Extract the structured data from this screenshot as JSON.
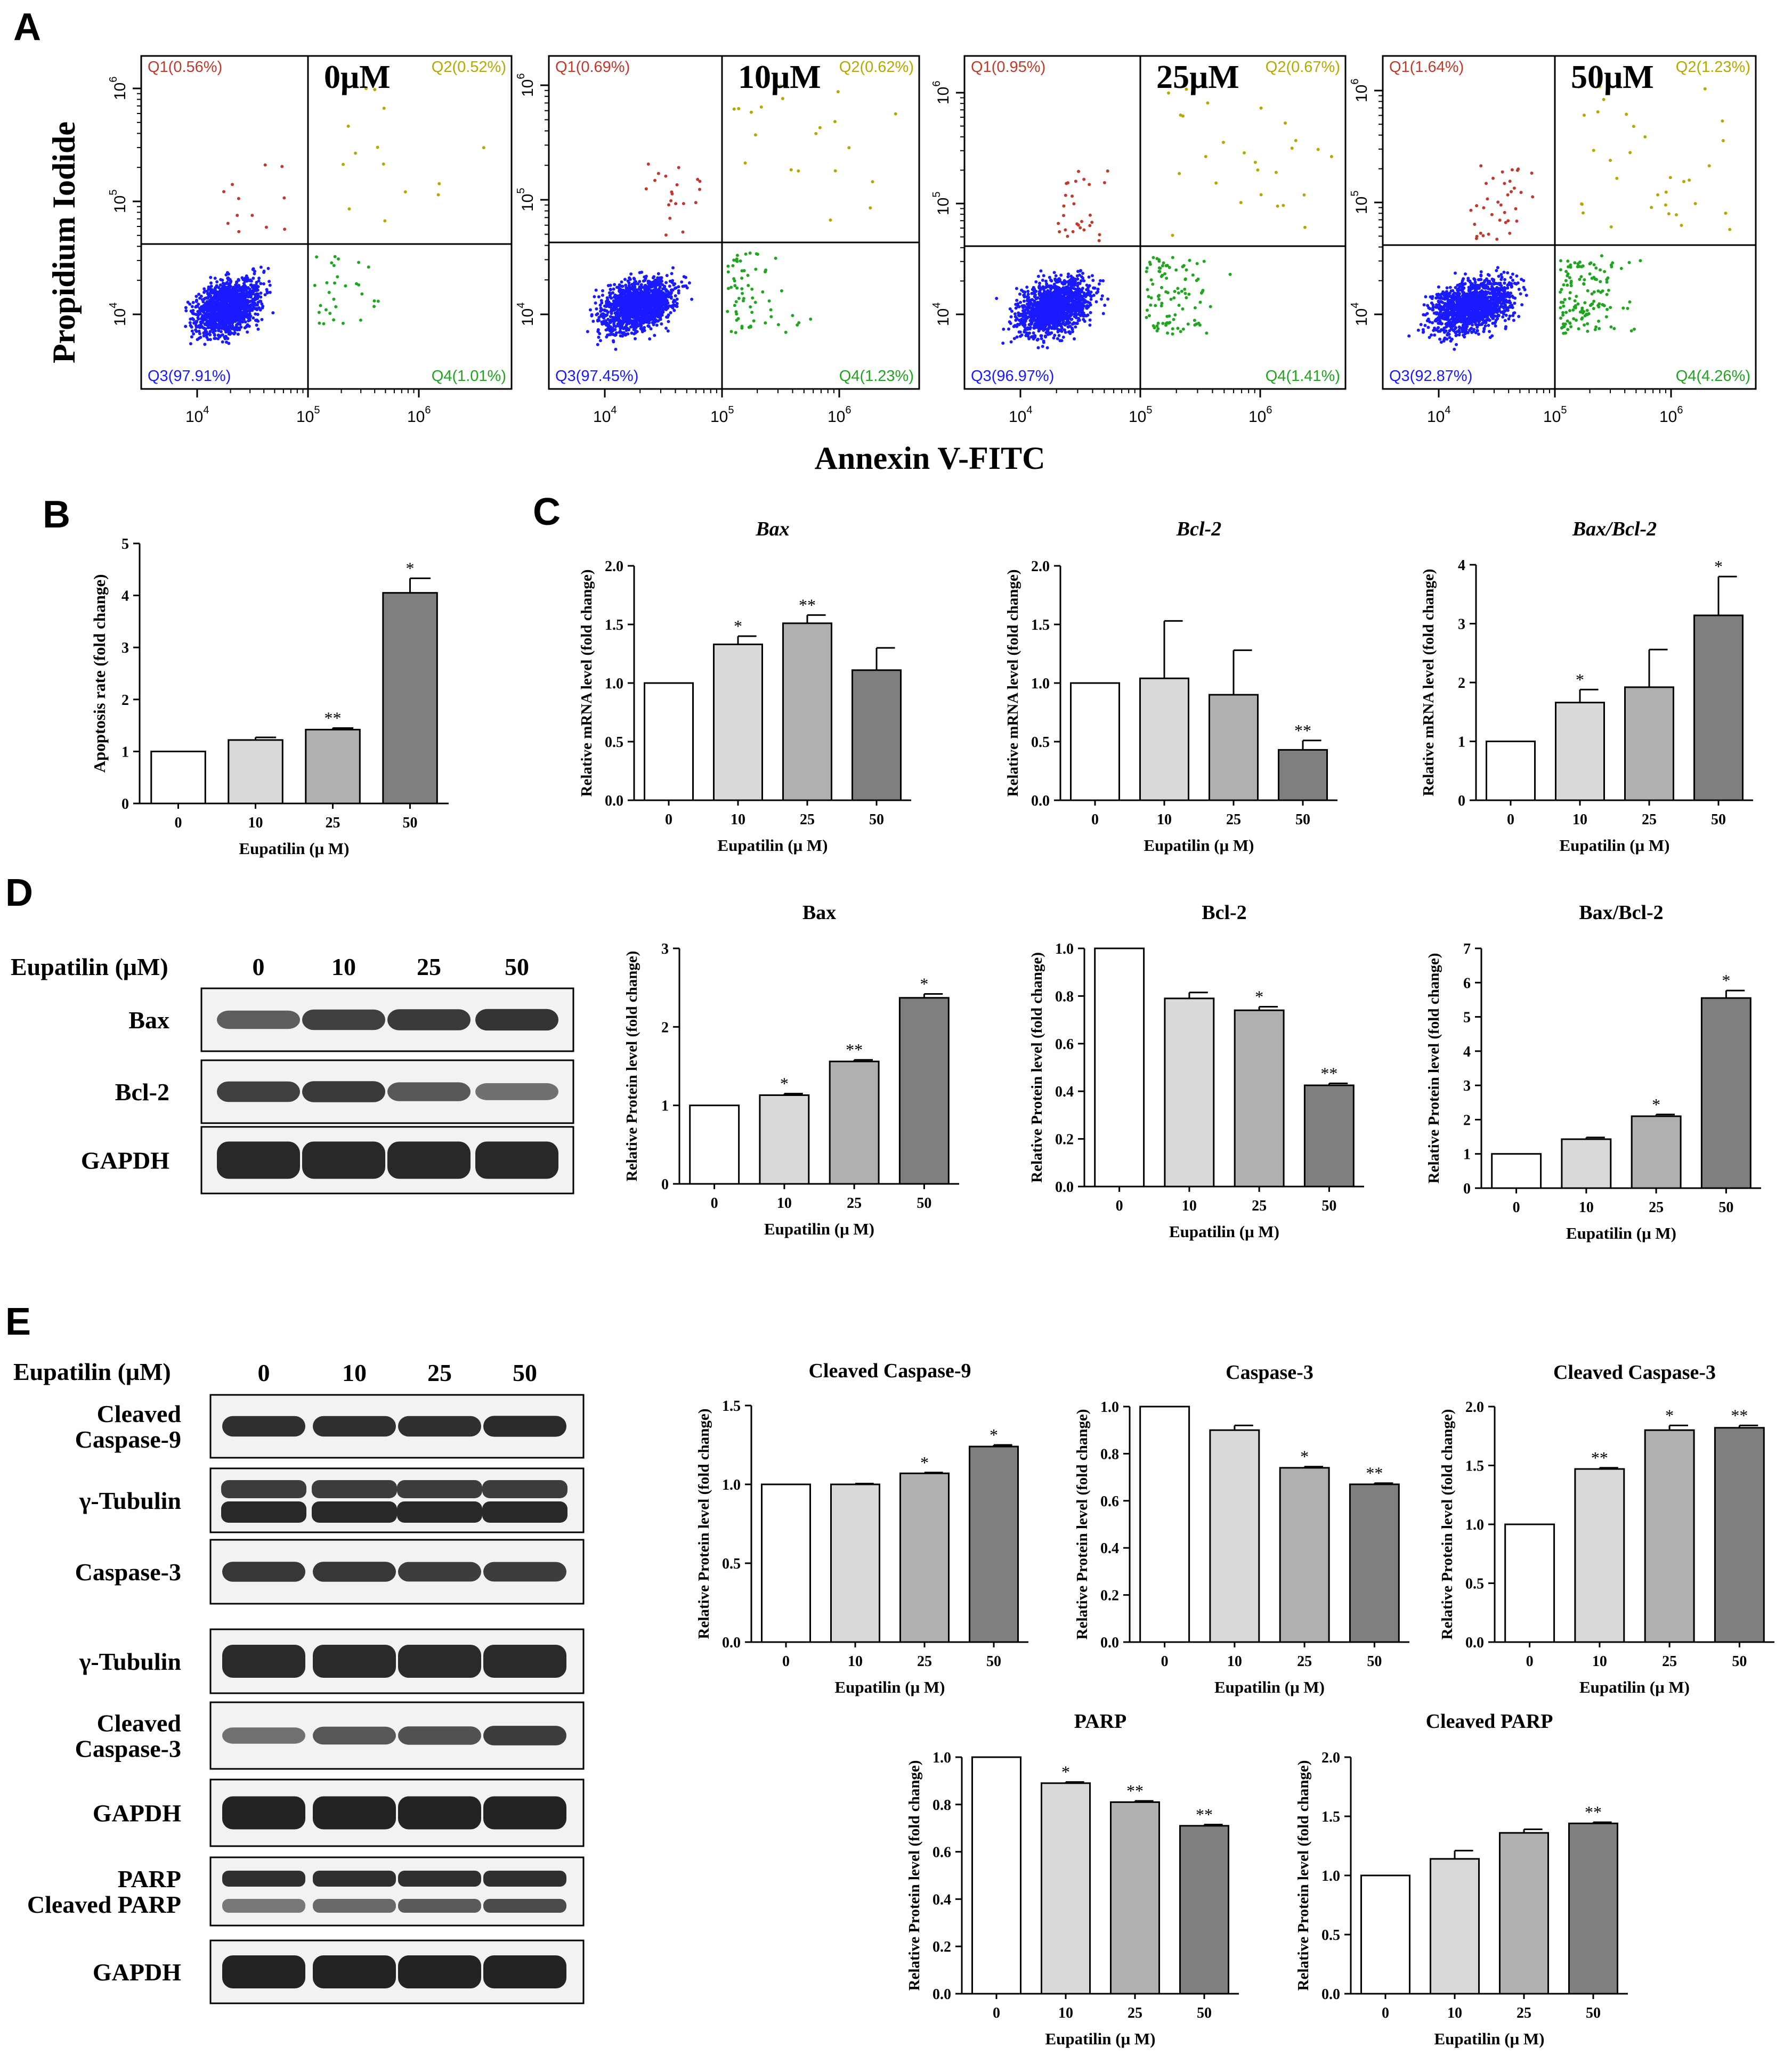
{
  "panel_labels": {
    "A": "A",
    "B": "B",
    "C": "C",
    "D": "D",
    "E": "E"
  },
  "colors": {
    "q1": "#c0392b",
    "q2": "#b5a800",
    "q3": "#1a1aff",
    "q4": "#1fa51f",
    "bar0": "#ffffff",
    "bar10": "#d9d9d9",
    "bar25": "#b0b0b0",
    "bar50": "#7f7f7f"
  },
  "flow": {
    "ylabel": "Propidium Iodide",
    "xlabel": "Annexin V-FITC",
    "tick_labels": {
      "t4": "10",
      "t5": "10",
      "t6": "10",
      "e4": "4",
      "e5": "5",
      "e6": "6"
    },
    "plots": [
      {
        "dose": "0μM",
        "q1": "Q1(0.56%)",
        "q2": "Q2(0.52%)",
        "q3": "Q3(97.91%)",
        "q4": "Q4(1.01%)"
      },
      {
        "dose": "10μM",
        "q1": "Q1(0.69%)",
        "q2": "Q2(0.62%)",
        "q3": "Q3(97.45%)",
        "q4": "Q4(1.23%)"
      },
      {
        "dose": "25μM",
        "q1": "Q1(0.95%)",
        "q2": "Q2(0.67%)",
        "q3": "Q3(96.97%)",
        "q4": "Q4(1.41%)"
      },
      {
        "dose": "50μM",
        "q1": "Q1(1.64%)",
        "q2": "Q2(1.23%)",
        "q3": "Q3(92.87%)",
        "q4": "Q4(4.26%)"
      }
    ]
  },
  "westerns": {
    "D": {
      "header": "Eupatilin (μM)",
      "doses": [
        "0",
        "10",
        "25",
        "50"
      ],
      "bands": [
        "Bax",
        "Bcl-2",
        "GAPDH"
      ]
    },
    "E": {
      "header": "Eupatilin (μM)",
      "doses": [
        "0",
        "10",
        "25",
        "50"
      ],
      "bands": [
        [
          "Cleaved",
          "Caspase-9"
        ],
        [
          "γ-Tubulin"
        ],
        [
          "Caspase-3"
        ],
        [
          "γ-Tubulin"
        ],
        [
          "Cleaved",
          "Caspase-3"
        ],
        [
          "GAPDH"
        ],
        [
          "PARP",
          "Cleaved PARP"
        ],
        [
          "GAPDH"
        ]
      ]
    }
  },
  "chart_data": [
    {
      "id": "B",
      "type": "bar",
      "title": "",
      "italic": false,
      "categories": [
        "0",
        "10",
        "25",
        "50"
      ],
      "values": [
        1.0,
        1.22,
        1.42,
        4.05
      ],
      "errors": [
        0,
        0.05,
        0.03,
        0.28
      ],
      "sig": [
        "",
        "",
        "**",
        "*"
      ],
      "ylabel": "Apoptosis rate (fold change)",
      "xlabel": "Eupatilin (μ M)",
      "ylim": [
        0,
        5
      ],
      "yticks": [
        "0",
        "1",
        "2",
        "3",
        "4",
        "5"
      ]
    },
    {
      "id": "C1",
      "type": "bar",
      "title": "Bax",
      "italic": true,
      "categories": [
        "0",
        "10",
        "25",
        "50"
      ],
      "values": [
        1.0,
        1.33,
        1.51,
        1.11
      ],
      "errors": [
        0,
        0.07,
        0.07,
        0.19
      ],
      "sig": [
        "",
        "*",
        "**",
        ""
      ],
      "ylabel": "Relative mRNA level (fold change)",
      "xlabel": "Eupatilin (μ M)",
      "ylim": [
        0,
        2
      ],
      "yticks": [
        "0.0",
        "0.5",
        "1.0",
        "1.5",
        "2.0"
      ]
    },
    {
      "id": "C2",
      "type": "bar",
      "title": "Bcl-2",
      "italic": true,
      "categories": [
        "0",
        "10",
        "25",
        "50"
      ],
      "values": [
        1.0,
        1.04,
        0.9,
        0.43
      ],
      "errors": [
        0,
        0.49,
        0.38,
        0.08
      ],
      "sig": [
        "",
        "",
        "",
        "**"
      ],
      "ylabel": "Relative mRNA level (fold change)",
      "xlabel": "Eupatilin (μ M)",
      "ylim": [
        0,
        2
      ],
      "yticks": [
        "0.0",
        "0.5",
        "1.0",
        "1.5",
        "2.0"
      ]
    },
    {
      "id": "C3",
      "type": "bar",
      "title": "Bax/Bcl-2",
      "italic": true,
      "categories": [
        "0",
        "10",
        "25",
        "50"
      ],
      "values": [
        1.0,
        1.66,
        1.92,
        3.14
      ],
      "errors": [
        0,
        0.22,
        0.64,
        0.66
      ],
      "sig": [
        "",
        "*",
        "",
        "*"
      ],
      "ylabel": "Relative mRNA level (fold change)",
      "xlabel": "Eupatilin (μ M)",
      "ylim": [
        0,
        4
      ],
      "yticks": [
        "0",
        "1",
        "2",
        "3",
        "4"
      ]
    },
    {
      "id": "D1",
      "type": "bar",
      "title": "Bax",
      "italic": false,
      "categories": [
        "0",
        "10",
        "25",
        "50"
      ],
      "values": [
        1.0,
        1.13,
        1.56,
        2.37
      ],
      "errors": [
        0,
        0.02,
        0.02,
        0.05
      ],
      "sig": [
        "",
        "*",
        "**",
        "*"
      ],
      "ylabel": "Relative Protein level (fold change)",
      "xlabel": "Eupatilin (μ M)",
      "ylim": [
        0,
        3
      ],
      "yticks": [
        "0",
        "1",
        "2",
        "3"
      ]
    },
    {
      "id": "D2",
      "type": "bar",
      "title": "Bcl-2",
      "italic": false,
      "categories": [
        "0",
        "10",
        "25",
        "50"
      ],
      "values": [
        1.0,
        0.79,
        0.74,
        0.425
      ],
      "errors": [
        0,
        0.025,
        0.015,
        0.008
      ],
      "sig": [
        "",
        "",
        "*",
        "**"
      ],
      "ylabel": "Relative Protein level (fold change)",
      "xlabel": "Eupatilin (μ M)",
      "ylim": [
        0,
        1
      ],
      "yticks": [
        "0.0",
        "0.2",
        "0.4",
        "0.6",
        "0.8",
        "1.0"
      ]
    },
    {
      "id": "D3",
      "type": "bar",
      "title": "Bax/Bcl-2",
      "italic": false,
      "categories": [
        "0",
        "10",
        "25",
        "50"
      ],
      "values": [
        1.0,
        1.43,
        2.1,
        5.55
      ],
      "errors": [
        0,
        0.05,
        0.05,
        0.22
      ],
      "sig": [
        "",
        "",
        "*",
        "*"
      ],
      "ylabel": "Relative Protein level (fold change)",
      "xlabel": "Eupatilin (μ M)",
      "ylim": [
        0,
        7
      ],
      "yticks": [
        "0",
        "1",
        "2",
        "3",
        "4",
        "5",
        "6",
        "7"
      ]
    },
    {
      "id": "E1",
      "type": "bar",
      "title": "Cleaved Caspase-9",
      "italic": false,
      "categories": [
        "0",
        "10",
        "25",
        "50"
      ],
      "values": [
        1.0,
        1.0,
        1.07,
        1.24
      ],
      "errors": [
        0,
        0.005,
        0.005,
        0.01
      ],
      "sig": [
        "",
        "",
        "*",
        "*"
      ],
      "ylabel": "Relative Protein level (fold change)",
      "xlabel": "Eupatilin (μ M)",
      "ylim": [
        0,
        1.5
      ],
      "yticks": [
        "0.0",
        "0.5",
        "1.0",
        "1.5"
      ]
    },
    {
      "id": "E2",
      "type": "bar",
      "title": "Caspase-3",
      "italic": false,
      "categories": [
        "0",
        "10",
        "25",
        "50"
      ],
      "values": [
        1.0,
        0.9,
        0.74,
        0.67
      ],
      "errors": [
        0,
        0.02,
        0.005,
        0.005
      ],
      "sig": [
        "",
        "",
        "*",
        "**"
      ],
      "ylabel": "Relative Protein level (fold change)",
      "xlabel": "Eupatilin (μ M)",
      "ylim": [
        0,
        1
      ],
      "yticks": [
        "0.0",
        "0.2",
        "0.4",
        "0.6",
        "0.8",
        "1.0"
      ]
    },
    {
      "id": "E3",
      "type": "bar",
      "title": "Cleaved Caspase-3",
      "italic": false,
      "categories": [
        "0",
        "10",
        "25",
        "50"
      ],
      "values": [
        1.0,
        1.47,
        1.8,
        1.82
      ],
      "errors": [
        0,
        0.01,
        0.04,
        0.02
      ],
      "sig": [
        "",
        "**",
        "*",
        "**"
      ],
      "ylabel": "Relative Protein level (fold change)",
      "xlabel": "Eupatilin (μ M)",
      "ylim": [
        0,
        2
      ],
      "yticks": [
        "0.0",
        "0.5",
        "1.0",
        "1.5",
        "2.0"
      ]
    },
    {
      "id": "E4",
      "type": "bar",
      "title": "PARP",
      "italic": false,
      "categories": [
        "0",
        "10",
        "25",
        "50"
      ],
      "values": [
        1.0,
        0.89,
        0.81,
        0.71
      ],
      "errors": [
        0,
        0.005,
        0.005,
        0.005
      ],
      "sig": [
        "",
        "*",
        "**",
        "**"
      ],
      "ylabel": "Relative Protein level (fold change)",
      "xlabel": "Eupatilin (μ M)",
      "ylim": [
        0,
        1
      ],
      "yticks": [
        "0.0",
        "0.2",
        "0.4",
        "0.6",
        "0.8",
        "1.0"
      ]
    },
    {
      "id": "E5",
      "type": "bar",
      "title": "Cleaved PARP",
      "italic": false,
      "categories": [
        "0",
        "10",
        "25",
        "50"
      ],
      "values": [
        1.0,
        1.14,
        1.36,
        1.44
      ],
      "errors": [
        0,
        0.07,
        0.03,
        0.01
      ],
      "sig": [
        "",
        "",
        "",
        "**"
      ],
      "ylabel": "Relative Protein level (fold change)",
      "xlabel": "Eupatilin (μ M)",
      "ylim": [
        0,
        2
      ],
      "yticks": [
        "0.0",
        "0.5",
        "1.0",
        "1.5",
        "2.0"
      ]
    }
  ]
}
